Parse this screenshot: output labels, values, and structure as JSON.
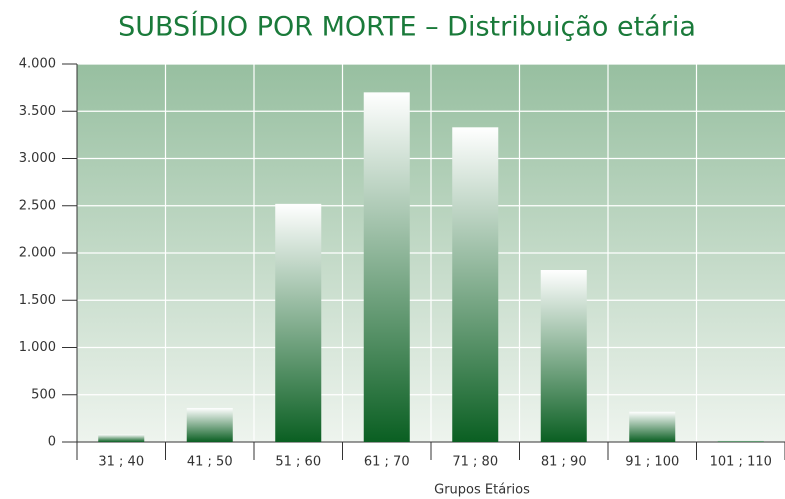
{
  "chart_data": {
    "type": "bar",
    "title": "SUBSÍDIO POR MORTE – Distribuição etária",
    "x_label": "Grupos Etários",
    "categories": [
      "31 ; 40",
      "41 ; 50",
      "51 ; 60",
      "61 ; 70",
      "71 ; 80",
      "81 ; 90",
      "91 ; 100",
      "101 ; 110"
    ],
    "values": [
      80,
      360,
      2520,
      3700,
      3330,
      1820,
      320,
      15
    ],
    "color": "#0a5f22",
    "ylim": [
      0,
      4000
    ],
    "yticks": [
      0,
      500,
      {
        "value": 1000,
        "label": "1.000"
      },
      {
        "value": 1500,
        "label": "1.500"
      },
      {
        "value": 2000,
        "label": "2.000"
      },
      {
        "value": 2500,
        "label": "2.500"
      },
      {
        "value": 3000,
        "label": "3.000"
      },
      {
        "value": 3500,
        "label": "3.500"
      },
      {
        "value": 4000,
        "label": "4.000"
      }
    ],
    "grid": true
  }
}
